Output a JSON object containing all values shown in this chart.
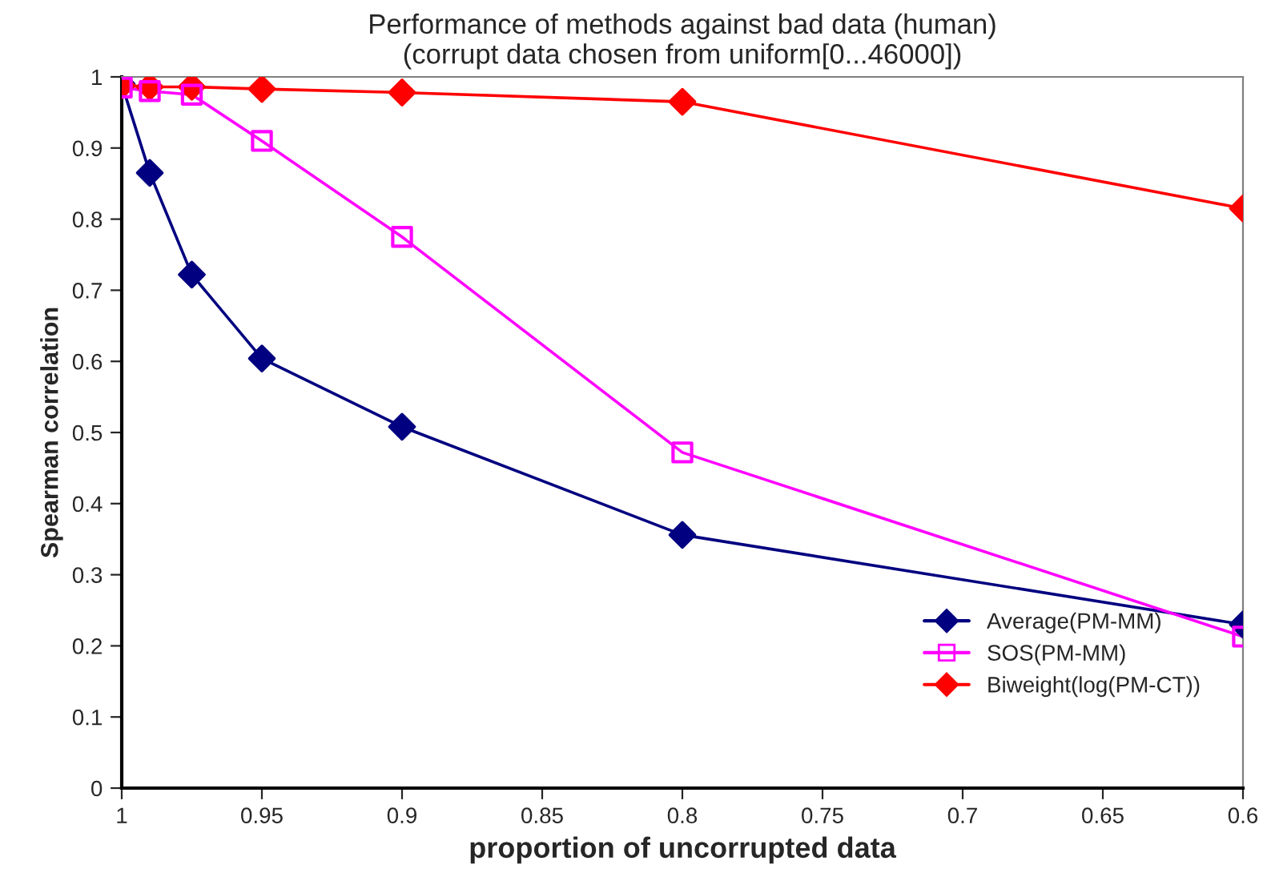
{
  "chart_data": {
    "type": "line",
    "title": "Performance of methods against bad data (human)\n(corrupt data chosen from uniform[0...46000])",
    "xlabel": "proportion of uncorrupted data",
    "ylabel": "Spearman correlation",
    "x": [
      1,
      0.99,
      0.975,
      0.95,
      0.9,
      0.8,
      0.6
    ],
    "series": [
      {
        "name": "Average(PM-MM)",
        "color": "#000080",
        "marker": "diamond",
        "values": [
          0.99,
          0.865,
          0.722,
          0.604,
          0.508,
          0.356,
          0.23
        ]
      },
      {
        "name": "SOS(PM-MM)",
        "color": "#ff00ff",
        "marker": "square",
        "values": [
          0.985,
          0.98,
          0.975,
          0.91,
          0.775,
          0.472,
          0.213
        ]
      },
      {
        "name": "Biweight(log(PM-CT))",
        "color": "#ff0000",
        "marker": "diamond",
        "values": [
          0.988,
          0.986,
          0.986,
          0.983,
          0.978,
          0.965,
          0.815
        ]
      }
    ],
    "xlim": [
      1,
      0.6
    ],
    "xticks": [
      1,
      0.95,
      0.9,
      0.85,
      0.8,
      0.75,
      0.7,
      0.65,
      0.6
    ],
    "ylim": [
      0,
      1
    ],
    "yticks": [
      0,
      0.1,
      0.2,
      0.3,
      0.4,
      0.5,
      0.6,
      0.7,
      0.8,
      0.9,
      1
    ],
    "grid": false,
    "legend": "bottom right",
    "line_style": "solid"
  }
}
